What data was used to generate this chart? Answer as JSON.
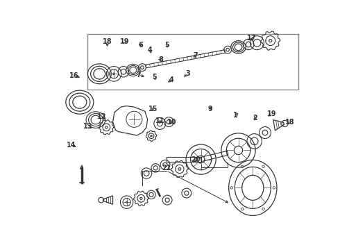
{
  "bg_color": "#ffffff",
  "line_color": "#333333",
  "fig_width": 4.9,
  "fig_height": 3.6,
  "dpi": 100
}
